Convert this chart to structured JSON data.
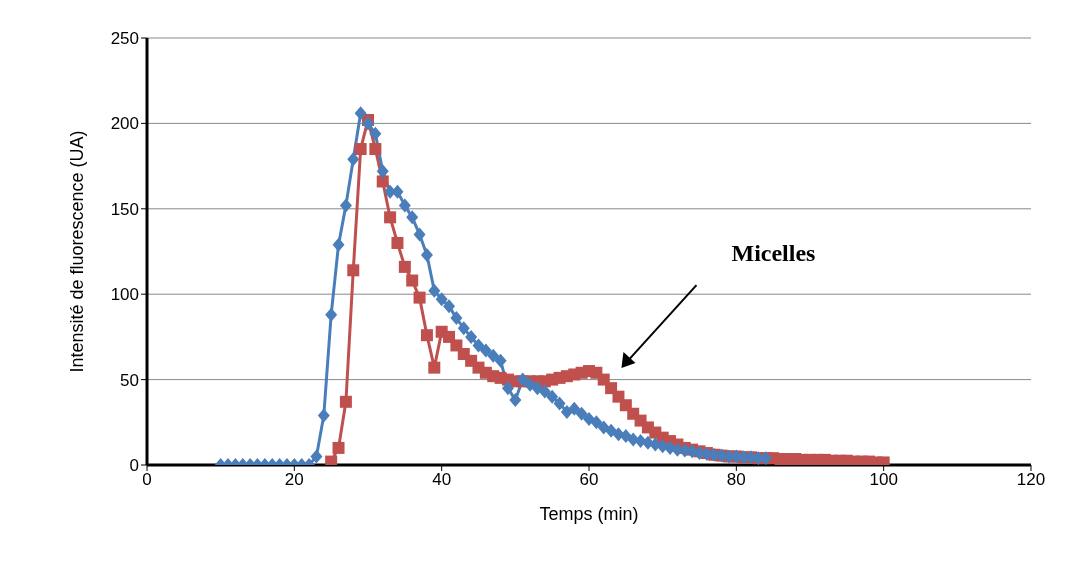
{
  "chart_data": {
    "type": "line",
    "xlabel": "Temps (min)",
    "ylabel": "Intensité de fluorescence (UA)",
    "xlim": [
      0,
      120
    ],
    "xticks": [
      0,
      20,
      40,
      60,
      80,
      100,
      120
    ],
    "ylim": [
      0,
      250
    ],
    "yticks": [
      0,
      50,
      100,
      150,
      200,
      250
    ],
    "grid": "y",
    "annotations": [
      "Micelles"
    ],
    "series": [
      {
        "color": "#4a7ebb",
        "marker": "diamond",
        "x": [
          10,
          11,
          12,
          13,
          14,
          15,
          16,
          17,
          18,
          19,
          20,
          21,
          22,
          23,
          24,
          25,
          26,
          27,
          28,
          29,
          30,
          31,
          32,
          33,
          34,
          35,
          36,
          37,
          38,
          39,
          40,
          41,
          42,
          43,
          44,
          45,
          46,
          47,
          48,
          49,
          50,
          51,
          52,
          53,
          54,
          55,
          56,
          57,
          58,
          59,
          60,
          61,
          62,
          63,
          64,
          65,
          66,
          67,
          68,
          69,
          70,
          71,
          72,
          73,
          74,
          75,
          76,
          77,
          78,
          79,
          80,
          81,
          82,
          83,
          84
        ],
        "values": [
          0,
          0,
          0,
          0,
          0,
          0,
          0,
          0,
          0,
          0,
          0,
          0,
          0,
          5,
          29,
          88,
          129,
          152,
          179,
          206,
          200,
          194,
          172,
          160,
          160,
          152,
          145,
          135,
          123,
          102,
          97,
          93,
          86,
          80,
          75,
          70,
          67,
          64,
          61,
          45,
          38,
          50,
          47,
          45,
          43,
          40,
          36,
          31,
          33,
          30,
          27,
          25,
          22,
          20,
          18,
          17,
          15,
          14,
          13,
          12,
          11,
          10,
          9,
          8.5,
          8,
          7,
          6.5,
          6,
          5.5,
          5,
          5,
          4.5,
          4.5,
          4,
          4
        ]
      },
      {
        "color": "#c0504d",
        "marker": "square",
        "x": [
          25,
          26,
          27,
          28,
          29,
          30,
          31,
          32,
          33,
          34,
          35,
          36,
          37,
          38,
          39,
          40,
          41,
          42,
          43,
          44,
          45,
          46,
          47,
          48,
          49,
          50,
          51,
          52,
          53,
          54,
          55,
          56,
          57,
          58,
          59,
          60,
          61,
          62,
          63,
          64,
          65,
          66,
          67,
          68,
          69,
          70,
          71,
          72,
          73,
          74,
          75,
          76,
          77,
          78,
          79,
          80,
          81,
          82,
          83,
          84,
          85,
          86,
          87,
          88,
          89,
          90,
          91,
          92,
          93,
          94,
          95,
          96,
          97,
          98,
          99,
          100
        ],
        "values": [
          2,
          10,
          37,
          114,
          185,
          202,
          185,
          166,
          145,
          130,
          116,
          108,
          98,
          76,
          57,
          78,
          75,
          70,
          65,
          61,
          57,
          54,
          52,
          51,
          50,
          49,
          49,
          49,
          49,
          49,
          50,
          51,
          52,
          53,
          54,
          55,
          54,
          50,
          45,
          40,
          35,
          30,
          26,
          22,
          19,
          16,
          14,
          12,
          10,
          9,
          8,
          7,
          6,
          5.5,
          5,
          5,
          4.5,
          4.5,
          4,
          4,
          4,
          3.5,
          3.5,
          3.5,
          3,
          3,
          3,
          3,
          2.5,
          2.5,
          2.5,
          2,
          2,
          2,
          1.5,
          1.5
        ]
      }
    ]
  }
}
